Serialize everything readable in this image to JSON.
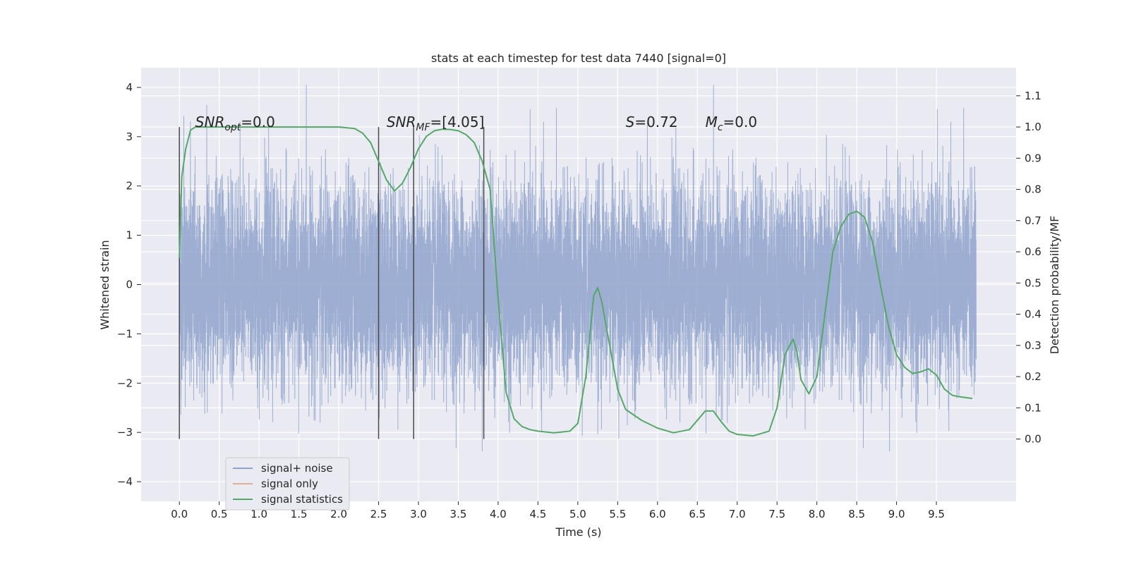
{
  "chart_data": {
    "type": "line",
    "title": "stats at each timestep for test data 7440 [signal=0]",
    "xlabel": "Time (s)",
    "ylabel_left": "Whitened strain",
    "ylabel_right": "Detection probability/MF",
    "xlim": [
      -0.48,
      10.5
    ],
    "ylim_left": [
      -4.4,
      4.4
    ],
    "ylim_right": [
      -0.2,
      1.19
    ],
    "xticks": [
      0.0,
      0.5,
      1.0,
      1.5,
      2.0,
      2.5,
      3.0,
      3.5,
      4.0,
      4.5,
      5.0,
      5.5,
      6.0,
      6.5,
      7.0,
      7.5,
      8.0,
      8.5,
      9.0,
      9.5
    ],
    "xtick_labels": [
      "0.0",
      "0.5",
      "1.0",
      "1.5",
      "2.0",
      "2.5",
      "3.0",
      "3.5",
      "4.0",
      "4.5",
      "5.0",
      "5.5",
      "6.0",
      "6.5",
      "7.0",
      "7.5",
      "8.0",
      "8.5",
      "9.0",
      "9.5"
    ],
    "yticks_left": [
      -4,
      -3,
      -2,
      -1,
      0,
      1,
      2,
      3,
      4
    ],
    "ytick_labels_left": [
      "−4",
      "−3",
      "−2",
      "−1",
      "0",
      "1",
      "2",
      "3",
      "4"
    ],
    "yticks_right": [
      0.0,
      0.1,
      0.2,
      0.3,
      0.4,
      0.5,
      0.6,
      0.7,
      0.8,
      0.9,
      1.0,
      1.1
    ],
    "ytick_labels_right": [
      "0.0",
      "0.1",
      "0.2",
      "0.3",
      "0.4",
      "0.5",
      "0.6",
      "0.7",
      "0.8",
      "0.9",
      "1.0",
      "1.1"
    ],
    "grid": true,
    "legend_placement": "lower-left",
    "series": [
      {
        "name": "signal+ noise",
        "axis": "left",
        "color": "#8fa3cc",
        "x_range": [
          0.0,
          10.0
        ],
        "sample_rate": 1024,
        "description_values": "random noise, std approx 1.0, peaks between -4.0 and 4.1"
      },
      {
        "name": "signal only",
        "axis": "left",
        "color": "#dd8452",
        "values": []
      },
      {
        "name": "signal statistics",
        "axis": "right",
        "color": "#55a868",
        "x": [
          0.0,
          0.03,
          0.08,
          0.14,
          0.2,
          0.4,
          0.8,
          1.2,
          1.6,
          2.0,
          2.2,
          2.3,
          2.4,
          2.5,
          2.6,
          2.7,
          2.8,
          2.9,
          3.0,
          3.1,
          3.2,
          3.3,
          3.4,
          3.5,
          3.6,
          3.7,
          3.8,
          3.9,
          4.0,
          4.1,
          4.2,
          4.3,
          4.4,
          4.5,
          4.7,
          4.9,
          5.0,
          5.1,
          5.2,
          5.25,
          5.3,
          5.4,
          5.5,
          5.6,
          5.8,
          6.0,
          6.2,
          6.4,
          6.6,
          6.7,
          6.8,
          6.9,
          7.0,
          7.2,
          7.4,
          7.5,
          7.6,
          7.7,
          7.75,
          7.8,
          7.9,
          8.0,
          8.1,
          8.2,
          8.3,
          8.4,
          8.5,
          8.6,
          8.7,
          8.8,
          8.9,
          9.0,
          9.1,
          9.2,
          9.3,
          9.4,
          9.5,
          9.6,
          9.7,
          9.8,
          9.95
        ],
        "values": [
          0.58,
          0.84,
          0.93,
          0.99,
          1.0,
          1.0,
          1.0,
          1.0,
          1.0,
          1.0,
          0.995,
          0.98,
          0.95,
          0.89,
          0.83,
          0.795,
          0.82,
          0.87,
          0.93,
          0.97,
          0.988,
          0.993,
          0.992,
          0.988,
          0.975,
          0.95,
          0.89,
          0.8,
          0.45,
          0.15,
          0.065,
          0.04,
          0.03,
          0.025,
          0.02,
          0.025,
          0.05,
          0.2,
          0.46,
          0.485,
          0.44,
          0.3,
          0.16,
          0.095,
          0.06,
          0.035,
          0.02,
          0.03,
          0.09,
          0.09,
          0.055,
          0.025,
          0.015,
          0.01,
          0.025,
          0.1,
          0.27,
          0.32,
          0.28,
          0.19,
          0.145,
          0.2,
          0.4,
          0.6,
          0.68,
          0.72,
          0.73,
          0.71,
          0.63,
          0.49,
          0.36,
          0.27,
          0.23,
          0.21,
          0.215,
          0.225,
          0.205,
          0.16,
          0.14,
          0.135,
          0.13
        ]
      }
    ],
    "vertical_lines": [
      0.0,
      2.5,
      2.94,
      3.82
    ],
    "annotations": [
      {
        "text": "SNR_opt=0.0",
        "x": 0.2,
        "y": 3.2
      },
      {
        "text": "SNR_MF=[4.05]",
        "x": 2.6,
        "y": 3.2
      },
      {
        "text": "S=0.72",
        "x": 5.6,
        "y": 3.2
      },
      {
        "text": "M_c=0.0",
        "x": 6.6,
        "y": 3.2
      }
    ],
    "colors": {
      "plot_background": "#eaeaf2",
      "grid": "#ffffff",
      "vline": "#4a4a4a"
    }
  }
}
